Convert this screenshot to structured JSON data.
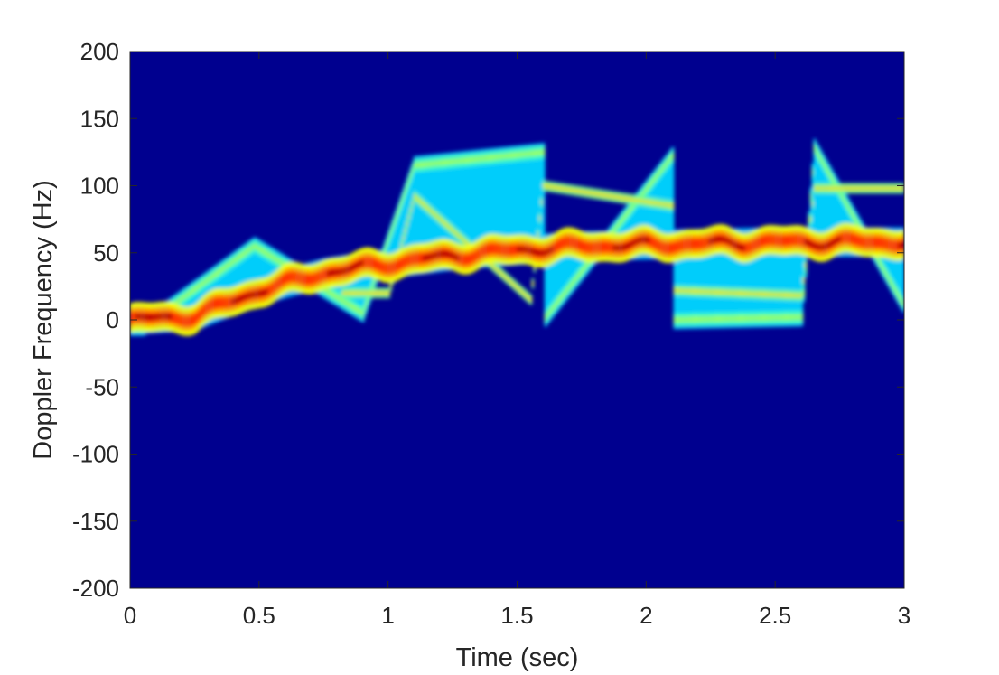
{
  "chart_data": {
    "type": "heatmap",
    "subtype": "micro-Doppler spectrogram",
    "title": "",
    "xlabel": "Time (sec)",
    "ylabel": "Doppler Frequency (Hz)",
    "xlim": [
      0,
      3
    ],
    "ylim": [
      -200,
      200
    ],
    "xticks": [
      0,
      0.5,
      1,
      1.5,
      2,
      2.5,
      3
    ],
    "xtick_labels": [
      "0",
      "0.5",
      "1",
      "1.5",
      "2",
      "2.5",
      "3"
    ],
    "yticks": [
      -200,
      -150,
      -100,
      -50,
      0,
      50,
      100,
      150,
      200
    ],
    "ytick_labels": [
      "-200",
      "-150",
      "-100",
      "-50",
      "0",
      "50",
      "100",
      "150",
      "200"
    ],
    "colormap": "jet",
    "background_color": "#00008f",
    "grid": false,
    "box": true,
    "features": {
      "torso_ridge": {
        "description": "dominant high-intensity (red) ridge",
        "points": [
          [
            0,
            0
          ],
          [
            0.25,
            3
          ],
          [
            0.5,
            22
          ],
          [
            0.75,
            35
          ],
          [
            1.0,
            42
          ],
          [
            1.25,
            48
          ],
          [
            1.5,
            52
          ],
          [
            1.75,
            55
          ],
          [
            2.0,
            56
          ],
          [
            2.25,
            57
          ],
          [
            2.5,
            58
          ],
          [
            2.75,
            58
          ],
          [
            3.0,
            58
          ]
        ]
      },
      "limb_swing_outer": {
        "description": "outer envelope of periodic limb swings",
        "period_sec": 0.5,
        "peaks": [
          [
            0.48,
            55
          ],
          [
            1.1,
            115
          ],
          [
            1.6,
            125
          ],
          [
            2.1,
            122
          ],
          [
            2.65,
            128
          ]
        ],
        "troughs": [
          [
            0.05,
            -5
          ],
          [
            0.9,
            5
          ],
          [
            1.6,
            0
          ],
          [
            2.1,
            0
          ],
          [
            2.6,
            2
          ],
          [
            3.0,
            10
          ]
        ]
      },
      "limb_swing_inner": {
        "description": "inner envelope of limb swings",
        "peaks": [
          [
            1.1,
            92
          ],
          [
            1.6,
            100
          ],
          [
            2.1,
            85
          ],
          [
            2.65,
            98
          ]
        ],
        "troughs": [
          [
            1.0,
            20
          ],
          [
            1.55,
            15
          ],
          [
            2.1,
            22
          ],
          [
            2.6,
            18
          ]
        ]
      }
    }
  }
}
